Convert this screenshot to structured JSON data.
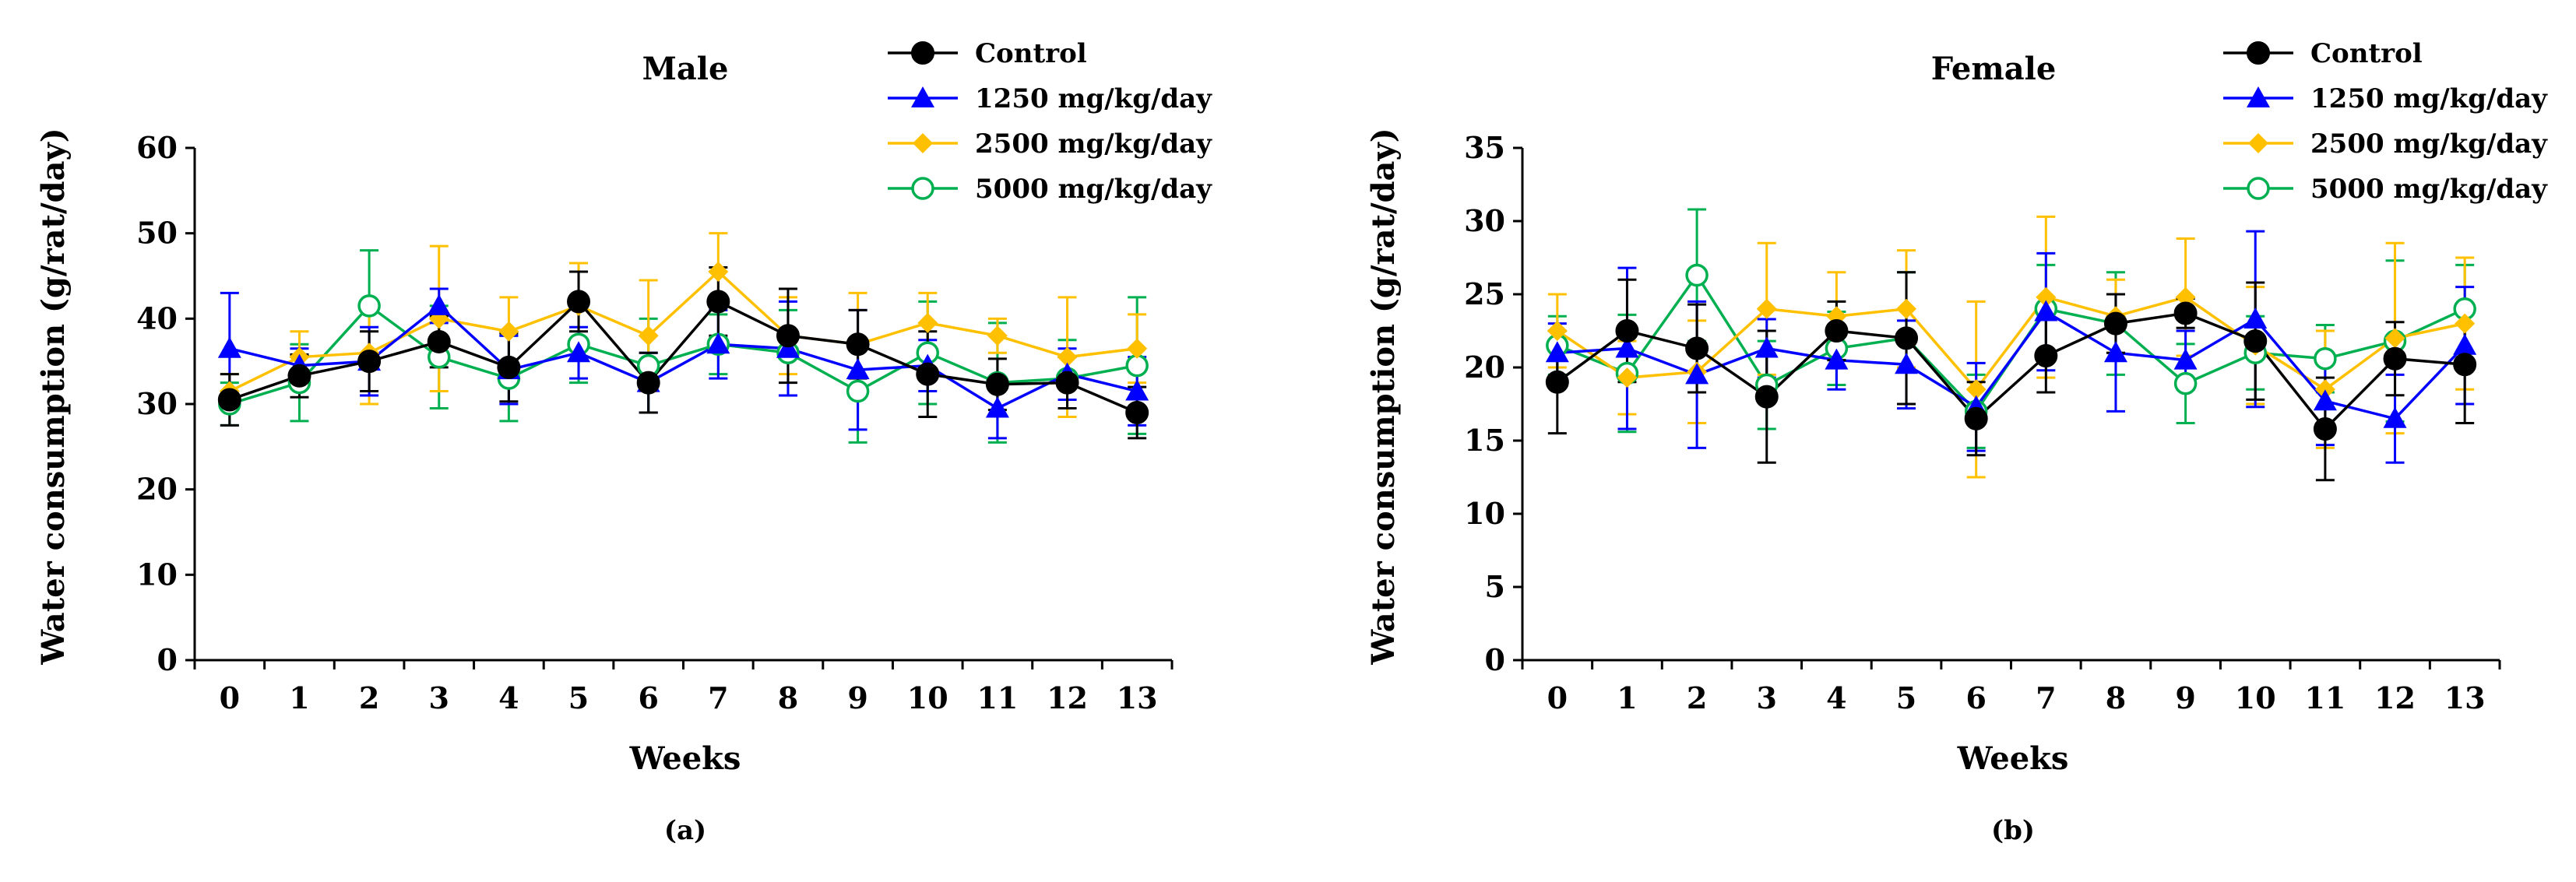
{
  "colors": {
    "control": "#000000",
    "mg1250": "#0000ff",
    "mg2500": "#ffc000",
    "mg5000": "#00b050"
  },
  "chart_data": [
    {
      "type": "line",
      "panel": "(a)",
      "title": "Male",
      "xlabel": "Weeks",
      "ylabel": "Water consumption (g/rat/day)",
      "ylim": [
        0,
        60
      ],
      "yticks": [
        0,
        10,
        20,
        30,
        40,
        50,
        60
      ],
      "x": [
        0,
        1,
        2,
        3,
        4,
        5,
        6,
        7,
        8,
        9,
        10,
        11,
        12,
        13
      ],
      "legend_position": "top-right",
      "series": [
        {
          "name": "Control",
          "key": "control",
          "marker": "circle",
          "values": [
            30.5,
            33.3,
            35.0,
            37.3,
            34.3,
            42.0,
            32.5,
            42.0,
            38.0,
            37.0,
            33.5,
            32.3,
            32.5,
            29.0
          ],
          "errors": [
            3.0,
            2.5,
            3.5,
            3.0,
            4.0,
            3.5,
            3.5,
            4.0,
            5.5,
            4.0,
            5.0,
            3.0,
            3.0,
            3.0
          ]
        },
        {
          "name": "1250 mg/kg/day",
          "key": "mg1250",
          "marker": "triangle",
          "values": [
            36.5,
            34.5,
            35.0,
            41.5,
            34.0,
            36.0,
            32.5,
            37.0,
            36.5,
            34.0,
            34.5,
            29.5,
            33.5,
            31.5
          ],
          "errors": [
            6.5,
            2.0,
            4.0,
            2.0,
            4.0,
            3.0,
            3.5,
            4.0,
            5.5,
            7.0,
            3.0,
            3.5,
            3.0,
            4.0
          ]
        },
        {
          "name": "2500 mg/kg/day",
          "key": "mg2500",
          "marker": "diamond",
          "values": [
            31.5,
            35.5,
            36.0,
            40.0,
            38.5,
            41.5,
            38.0,
            45.5,
            38.0,
            37.0,
            39.5,
            38.0,
            35.5,
            36.5
          ],
          "errors": [
            2.0,
            3.0,
            6.0,
            8.5,
            4.0,
            5.0,
            6.5,
            4.5,
            4.5,
            6.0,
            3.5,
            2.0,
            7.0,
            4.0
          ]
        },
        {
          "name": "5000 mg/kg/day",
          "key": "mg5000",
          "marker": "open-circle",
          "values": [
            30.0,
            32.5,
            41.5,
            35.5,
            33.0,
            37.0,
            34.5,
            37.0,
            36.0,
            31.5,
            36.0,
            32.5,
            33.0,
            34.5
          ],
          "errors": [
            2.5,
            4.5,
            6.5,
            6.0,
            5.0,
            4.5,
            5.5,
            3.5,
            5.0,
            6.0,
            6.0,
            7.0,
            4.5,
            8.0
          ]
        }
      ]
    },
    {
      "type": "line",
      "panel": "(b)",
      "title": "Female",
      "xlabel": "Weeks",
      "ylabel": "Water consumption (g/rat/day)",
      "ylim": [
        0,
        35
      ],
      "yticks": [
        0,
        5,
        10,
        15,
        20,
        25,
        30,
        35
      ],
      "x": [
        0,
        1,
        2,
        3,
        4,
        5,
        6,
        7,
        8,
        9,
        10,
        11,
        12,
        13
      ],
      "legend_position": "top-right",
      "series": [
        {
          "name": "Control",
          "key": "control",
          "marker": "circle",
          "values": [
            19.0,
            22.5,
            21.3,
            18.0,
            22.5,
            22.0,
            16.5,
            20.8,
            23.0,
            23.7,
            21.8,
            15.8,
            20.6,
            20.2
          ],
          "errors": [
            3.5,
            3.5,
            3.0,
            4.5,
            2.0,
            4.5,
            2.5,
            2.5,
            2.0,
            1.0,
            4.0,
            3.5,
            2.5,
            4.0
          ]
        },
        {
          "name": "1250 mg/kg/day",
          "key": "mg1250",
          "marker": "triangle",
          "values": [
            21.0,
            21.3,
            19.5,
            21.3,
            20.5,
            20.2,
            17.3,
            23.8,
            21.0,
            20.5,
            23.3,
            17.7,
            16.5,
            21.5
          ],
          "errors": [
            2.0,
            5.5,
            5.0,
            2.0,
            2.0,
            3.0,
            3.0,
            4.0,
            4.0,
            2.0,
            6.0,
            3.0,
            3.0,
            4.0
          ]
        },
        {
          "name": "2500 mg/kg/day",
          "key": "mg2500",
          "marker": "diamond",
          "values": [
            22.5,
            19.3,
            19.7,
            24.0,
            23.5,
            24.0,
            18.5,
            24.8,
            23.5,
            24.8,
            21.5,
            18.5,
            22.0,
            23.0
          ],
          "errors": [
            2.5,
            2.5,
            3.5,
            4.5,
            3.0,
            4.0,
            6.0,
            5.5,
            2.5,
            4.0,
            4.0,
            4.0,
            6.5,
            4.5
          ]
        },
        {
          "name": "5000 mg/kg/day",
          "key": "mg5000",
          "marker": "open-circle",
          "values": [
            21.5,
            19.6,
            26.3,
            18.8,
            21.3,
            22.0,
            17.0,
            24.0,
            23.0,
            18.9,
            21.0,
            20.6,
            21.8,
            24.0
          ],
          "errors": [
            2.0,
            4.0,
            4.5,
            3.0,
            2.5,
            4.5,
            2.5,
            3.0,
            3.5,
            2.7,
            2.5,
            2.3,
            5.5,
            3.0
          ]
        }
      ]
    }
  ]
}
